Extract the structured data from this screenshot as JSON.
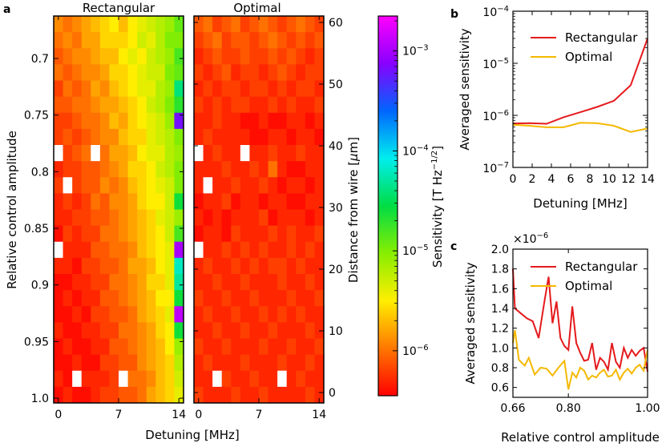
{
  "panel_labels": {
    "a": "a",
    "b": "b",
    "c": "c"
  },
  "heatmap_rect": {
    "title": "Rectangular"
  },
  "heatmap_opt": {
    "title": "Optimal"
  },
  "heatmap_common": {
    "xlabel": "Detuning [MHz]",
    "x_ticks": [
      "0",
      "7",
      "14"
    ],
    "ylabel": "Relative control amplitude",
    "y_ticks": [
      "0.7",
      "0.75",
      "0.8",
      "0.85",
      "0.9",
      "0.95",
      "1.0"
    ],
    "y2label": "Distance from wire [μm]",
    "y2_ticks": [
      "0",
      "10",
      "20",
      "30",
      "40",
      "50",
      "60"
    ]
  },
  "colorbar": {
    "label": "Sensitivity [T Hz^-1/2]",
    "ticks": [
      {
        "label": "10^-3",
        "value": 0.001
      },
      {
        "label": "10^-4",
        "value": 0.0001
      },
      {
        "label": "10^-5",
        "value": 1e-05
      },
      {
        "label": "10^-6",
        "value": 1e-06
      }
    ],
    "log_range": [
      -6.45,
      -2.65
    ],
    "stops": [
      "#ff0000",
      "#ff7700",
      "#ffee00",
      "#88ee00",
      "#00dd44",
      "#00eeee",
      "#0066ff",
      "#8800ff",
      "#ff00ff"
    ]
  },
  "chart_data": [
    {
      "type": "heatmap",
      "title": "Rectangular",
      "xlabel": "Detuning [MHz]",
      "ylabel": "Relative control amplitude",
      "columns": 14,
      "rows": 24,
      "scale": "log10 sensitivity [T Hz^-1/2]",
      "rows_log10": [
        [
          -5.9,
          -6.0,
          -5.9,
          -5.8,
          -5.7,
          -5.6,
          -5.5,
          -5.7,
          -5.5,
          -5.4,
          -5.3,
          -5.2,
          -5.1,
          -4.9
        ],
        [
          -6.0,
          -5.9,
          -6.0,
          -5.8,
          -5.8,
          -5.6,
          -5.6,
          -5.6,
          -5.5,
          -5.3,
          -5.4,
          -5.2,
          -5.0,
          -5.0
        ],
        [
          -6.1,
          -6.0,
          -5.9,
          -5.9,
          -5.8,
          -5.7,
          -5.7,
          -5.5,
          -5.4,
          -5.5,
          -5.3,
          -5.2,
          -5.1,
          -4.8
        ],
        [
          -6.0,
          -6.1,
          -6.0,
          -5.9,
          -5.9,
          -5.8,
          -5.6,
          -5.6,
          -5.5,
          -5.4,
          -5.3,
          -5.3,
          -5.0,
          -4.9
        ],
        [
          -6.2,
          -6.0,
          -6.1,
          -6.0,
          -5.8,
          -5.9,
          -5.7,
          -5.6,
          -5.5,
          -5.4,
          -5.4,
          -5.2,
          -5.1,
          -4.4
        ],
        [
          -6.1,
          -6.1,
          -6.0,
          -6.0,
          -5.9,
          -5.8,
          -5.8,
          -5.7,
          -5.6,
          -5.5,
          -5.3,
          -5.2,
          -5.0,
          -4.7
        ],
        [
          -6.2,
          -6.2,
          -6.1,
          -6.0,
          -6.0,
          -5.9,
          -5.7,
          -5.8,
          -5.6,
          -5.5,
          -5.4,
          -5.3,
          -5.1,
          -3.2
        ],
        [
          -6.2,
          -6.1,
          -6.2,
          -6.1,
          -6.0,
          -5.9,
          -5.9,
          -5.7,
          -5.6,
          -5.6,
          -5.4,
          -5.3,
          -5.2,
          -5.0
        ],
        [
          null,
          -6.2,
          -6.1,
          -6.0,
          null,
          -6.0,
          -5.8,
          -5.8,
          -5.7,
          -5.5,
          -5.4,
          -5.4,
          -5.2,
          -5.1
        ],
        [
          -6.3,
          -6.2,
          -6.2,
          -6.1,
          -6.1,
          -6.0,
          -5.9,
          -5.8,
          -5.6,
          -5.6,
          -5.5,
          -5.3,
          -5.2,
          -5.0
        ],
        [
          -6.2,
          null,
          -6.2,
          -6.1,
          -6.1,
          -5.9,
          -6.0,
          -5.9,
          -5.7,
          -5.6,
          -5.5,
          -5.4,
          -5.3,
          -5.0
        ],
        [
          -6.3,
          -6.2,
          -6.3,
          -6.2,
          -6.0,
          -6.1,
          -5.9,
          -5.9,
          -5.8,
          -5.6,
          -5.5,
          -5.5,
          -5.3,
          -4.6
        ],
        [
          -6.3,
          -6.3,
          -6.2,
          -6.2,
          -6.1,
          -6.1,
          -6.0,
          -5.9,
          -5.8,
          -5.7,
          -5.6,
          -5.4,
          -5.3,
          -5.1
        ],
        [
          -6.4,
          -6.2,
          -6.3,
          -6.2,
          -6.2,
          -6.0,
          -6.0,
          -5.9,
          -5.8,
          -5.7,
          -5.6,
          -5.5,
          -5.3,
          -4.8
        ],
        [
          null,
          -6.3,
          -6.3,
          -6.3,
          -6.1,
          -6.1,
          -6.0,
          -6.0,
          -5.9,
          -5.7,
          -5.6,
          -5.5,
          -5.4,
          -3.0
        ],
        [
          -6.3,
          -6.3,
          -6.4,
          -6.2,
          -6.2,
          -6.1,
          -6.1,
          -6.0,
          -5.8,
          -5.8,
          -5.7,
          -5.5,
          -5.4,
          -4.2
        ],
        [
          -6.4,
          -6.4,
          -6.3,
          -6.3,
          -6.2,
          -6.2,
          -6.0,
          -6.0,
          -5.9,
          -5.8,
          -5.6,
          -5.6,
          -5.4,
          -4.3
        ],
        [
          -6.4,
          -6.3,
          -6.4,
          -6.3,
          -6.3,
          -6.1,
          -6.1,
          -6.0,
          -5.9,
          -5.8,
          -5.7,
          -5.5,
          -5.5,
          -4.6
        ],
        [
          -6.4,
          -6.4,
          -6.3,
          -6.4,
          -6.2,
          -6.2,
          -6.1,
          -6.1,
          -6.0,
          -5.8,
          -5.7,
          -5.6,
          -5.4,
          -2.9
        ],
        [
          -6.3,
          -6.4,
          -6.4,
          -6.3,
          -6.3,
          -6.2,
          -6.2,
          -6.0,
          -6.0,
          -5.9,
          -5.8,
          -5.6,
          -5.5,
          -4.6
        ],
        [
          -6.4,
          -6.3,
          -6.4,
          -6.4,
          -6.3,
          -6.3,
          -6.1,
          -6.1,
          -6.0,
          -5.9,
          -5.8,
          -5.7,
          -5.5,
          -5.1
        ],
        [
          -6.4,
          -6.4,
          -6.3,
          -6.4,
          -6.4,
          -6.2,
          -6.2,
          -6.1,
          -6.1,
          -5.9,
          -5.8,
          -5.7,
          -5.6,
          -5.2
        ],
        [
          -6.3,
          -6.4,
          null,
          -6.3,
          -6.3,
          -6.3,
          -6.2,
          null,
          -6.0,
          -6.0,
          -5.9,
          -5.7,
          -5.6,
          -5.3
        ],
        [
          -6.4,
          -6.3,
          -6.4,
          -6.4,
          -6.3,
          -6.2,
          -6.2,
          -6.1,
          -6.1,
          -6.0,
          -5.8,
          -5.7,
          -5.6,
          -5.4
        ]
      ]
    },
    {
      "type": "heatmap",
      "title": "Optimal",
      "xlabel": "Detuning [MHz]",
      "y2label": "Distance from wire [μm]",
      "columns": 14,
      "rows": 24,
      "scale": "log10 sensitivity [T Hz^-1/2]",
      "rows_log10": [
        [
          -6.1,
          -6.0,
          -6.2,
          -6.1,
          -6.0,
          -6.2,
          -6.1,
          -6.0,
          -6.1,
          -6.2,
          -6.1,
          -6.0,
          -6.1,
          -6.2
        ],
        [
          -6.2,
          -6.1,
          -6.0,
          -6.2,
          -6.1,
          -6.1,
          -6.2,
          -6.1,
          -6.0,
          -6.1,
          -6.2,
          -6.1,
          -6.2,
          -6.1
        ],
        [
          -6.3,
          -6.2,
          -6.1,
          -6.2,
          -6.2,
          -6.1,
          -6.2,
          -6.2,
          -6.1,
          -6.2,
          -6.1,
          -6.2,
          -6.3,
          -6.2
        ],
        [
          -6.2,
          -6.3,
          -6.2,
          -6.1,
          -6.3,
          -6.2,
          -6.2,
          -6.3,
          -6.2,
          -6.1,
          -6.2,
          -6.3,
          -6.2,
          -6.2
        ],
        [
          -6.3,
          -6.2,
          -6.3,
          -6.2,
          -6.2,
          -6.3,
          -6.2,
          -6.2,
          -6.3,
          -6.2,
          -6.3,
          -6.2,
          -6.2,
          -6.3
        ],
        [
          -6.2,
          -6.3,
          -6.2,
          -6.3,
          -6.2,
          -6.2,
          -6.3,
          -6.3,
          -6.2,
          -6.3,
          -6.2,
          -6.3,
          -6.3,
          -6.2
        ],
        [
          -6.3,
          -6.3,
          -6.2,
          -6.3,
          -6.3,
          -6.4,
          -6.4,
          -6.3,
          -6.4,
          -6.4,
          -6.3,
          -6.3,
          -6.4,
          -6.3
        ],
        [
          -6.3,
          -6.2,
          -6.3,
          -6.3,
          -6.3,
          -6.3,
          -6.4,
          -6.4,
          -6.3,
          -6.3,
          -6.4,
          -6.3,
          -6.3,
          -6.4
        ],
        [
          null,
          -6.3,
          -6.2,
          -6.3,
          -6.3,
          null,
          -6.3,
          -6.3,
          -6.2,
          -6.3,
          -6.3,
          -6.2,
          -6.3,
          -6.3
        ],
        [
          -6.3,
          -6.3,
          -6.3,
          -6.2,
          -6.3,
          -6.3,
          -6.2,
          -6.3,
          -6.0,
          -6.3,
          -6.4,
          -6.4,
          -6.3,
          -6.3
        ],
        [
          -6.3,
          null,
          -6.3,
          -6.3,
          -6.2,
          -6.3,
          -6.3,
          -6.2,
          -6.3,
          -6.4,
          -6.3,
          -6.3,
          -6.4,
          -6.3
        ],
        [
          -6.4,
          -6.3,
          -6.3,
          -6.2,
          -6.4,
          -6.3,
          -6.3,
          -6.4,
          -6.3,
          -6.3,
          -6.4,
          -6.4,
          -6.3,
          -6.3
        ],
        [
          -6.3,
          -6.4,
          -6.3,
          -6.4,
          -6.3,
          -6.3,
          -6.3,
          -6.2,
          -6.4,
          -6.3,
          -6.3,
          -6.3,
          -6.4,
          -6.3
        ],
        [
          -6.4,
          -6.3,
          -6.3,
          -6.4,
          -6.2,
          -6.3,
          -6.3,
          -6.3,
          -6.2,
          -6.3,
          -6.2,
          -6.3,
          -6.3,
          -6.2
        ],
        [
          null,
          -6.3,
          -6.3,
          -6.2,
          -6.3,
          -6.2,
          -6.3,
          -6.2,
          -6.3,
          -6.3,
          -6.2,
          -6.3,
          -6.2,
          -6.3
        ],
        [
          -6.3,
          -6.2,
          -6.3,
          -6.3,
          -6.2,
          -6.3,
          -6.2,
          -6.3,
          -6.2,
          -6.2,
          -6.3,
          -6.2,
          -6.3,
          -6.3
        ],
        [
          -6.3,
          -6.3,
          -6.2,
          -6.3,
          -6.3,
          -6.2,
          -6.3,
          -6.3,
          -6.3,
          -6.2,
          -6.3,
          -6.3,
          -6.2,
          -6.3
        ],
        [
          -6.2,
          -6.3,
          -6.3,
          -6.2,
          -6.3,
          -6.3,
          -6.2,
          -6.3,
          -6.3,
          -6.3,
          -6.2,
          -6.3,
          -6.3,
          -6.2
        ],
        [
          -6.3,
          -6.2,
          -6.3,
          -6.3,
          -6.2,
          -6.3,
          -6.3,
          -6.2,
          -6.3,
          -6.2,
          -6.3,
          -6.2,
          -6.3,
          -6.3
        ],
        [
          -6.3,
          -6.3,
          -6.2,
          -6.3,
          -6.3,
          -6.2,
          -6.3,
          -6.3,
          -6.2,
          -6.3,
          -6.3,
          -6.3,
          -6.2,
          -6.3
        ],
        [
          -6.2,
          -6.3,
          -6.3,
          -6.2,
          -6.3,
          -6.3,
          -6.3,
          -6.2,
          -6.3,
          -6.3,
          -6.2,
          -6.3,
          -6.3,
          -6.2
        ],
        [
          -6.3,
          -6.2,
          -6.3,
          -6.3,
          -6.3,
          -6.2,
          -6.3,
          -6.3,
          -6.3,
          -6.2,
          -6.3,
          -6.3,
          -6.2,
          -6.3
        ],
        [
          -6.3,
          -6.3,
          null,
          -6.2,
          -6.3,
          -6.3,
          -6.2,
          -6.3,
          -6.3,
          null,
          -6.3,
          -6.2,
          -6.3,
          -6.3
        ],
        [
          -6.2,
          -6.3,
          -6.3,
          -6.3,
          -6.2,
          -6.3,
          -6.3,
          -6.2,
          -6.3,
          -6.3,
          -6.3,
          -6.3,
          -6.2,
          -6.3
        ]
      ]
    },
    {
      "type": "line",
      "title": "",
      "xlabel": "Detuning [MHz]",
      "ylabel": "Averaged sensitivity",
      "yscale": "log",
      "xlim": [
        0,
        14
      ],
      "ylim": [
        1e-07,
        0.0001
      ],
      "x_ticks": [
        "0",
        "2",
        "4",
        "6",
        "8",
        "10",
        "12",
        "14"
      ],
      "y_ticks": [
        {
          "label": "10^-7",
          "value": 1e-07
        },
        {
          "label": "10^-6",
          "value": 1e-06
        },
        {
          "label": "10^-5",
          "value": 1e-05
        },
        {
          "label": "10^-4",
          "value": 0.0001
        }
      ],
      "legend": "top-right",
      "series": [
        {
          "name": "Rectangular",
          "color": "#e41a1c",
          "x": [
            0,
            1.75,
            3.5,
            5.25,
            7,
            8.75,
            10.5,
            12.25,
            14
          ],
          "values": [
            7e-07,
            7.1e-07,
            6.9e-07,
            9.2e-07,
            1.15e-06,
            1.45e-06,
            1.9e-06,
            3.8e-06,
            3e-05
          ]
        },
        {
          "name": "Optimal",
          "color": "#f5b800",
          "x": [
            0,
            1.75,
            3.5,
            5.25,
            7,
            8.75,
            10.5,
            12.25,
            14
          ],
          "values": [
            6.6e-07,
            6.3e-07,
            5.9e-07,
            5.9e-07,
            7.2e-07,
            7.1e-07,
            6.3e-07,
            4.8e-07,
            5.6e-07
          ]
        }
      ]
    },
    {
      "type": "line",
      "title": "",
      "xlabel": "Relative control amplitude",
      "ylabel": "Averaged sensitivity",
      "y_multiplier": "×10^-6",
      "xlim": [
        0.66,
        1.0
      ],
      "ylim": [
        0.5,
        2.0
      ],
      "x_ticks": [
        "0.66",
        "0.80",
        "1.00"
      ],
      "x_tick_values": [
        0.66,
        0.8,
        1.0
      ],
      "y_ticks": [
        "0.6",
        "0.8",
        "1.0",
        "1.2",
        "1.4",
        "1.6",
        "1.8",
        "2.0"
      ],
      "legend": "top-right",
      "series": [
        {
          "name": "Rectangular",
          "color": "#e41a1c",
          "x": [
            0.66,
            0.665,
            0.68,
            0.695,
            0.71,
            0.725,
            0.74,
            0.75,
            0.76,
            0.77,
            0.78,
            0.79,
            0.8,
            0.81,
            0.82,
            0.83,
            0.84,
            0.85,
            0.86,
            0.87,
            0.88,
            0.89,
            0.9,
            0.91,
            0.92,
            0.93,
            0.94,
            0.95,
            0.96,
            0.97,
            0.98,
            0.99,
            1.0
          ],
          "values": [
            1.8,
            1.4,
            1.35,
            1.3,
            1.27,
            1.1,
            1.48,
            1.72,
            1.25,
            1.47,
            1.1,
            1.02,
            0.98,
            1.42,
            1.05,
            0.95,
            0.87,
            0.88,
            1.05,
            0.78,
            0.9,
            0.86,
            0.78,
            1.05,
            0.86,
            0.8,
            1.0,
            0.9,
            0.98,
            0.92,
            0.97,
            1.0,
            0.76
          ]
        },
        {
          "name": "Optimal",
          "color": "#f5b800",
          "x": [
            0.66,
            0.665,
            0.675,
            0.69,
            0.7,
            0.715,
            0.73,
            0.745,
            0.76,
            0.775,
            0.79,
            0.8,
            0.81,
            0.82,
            0.83,
            0.84,
            0.85,
            0.86,
            0.87,
            0.88,
            0.89,
            0.9,
            0.91,
            0.92,
            0.93,
            0.94,
            0.95,
            0.96,
            0.97,
            0.98,
            0.99,
            1.0
          ],
          "values": [
            1.05,
            1.18,
            0.88,
            0.82,
            0.9,
            0.73,
            0.8,
            0.79,
            0.72,
            0.8,
            0.87,
            0.58,
            0.75,
            0.7,
            0.8,
            0.77,
            0.68,
            0.72,
            0.7,
            0.75,
            0.78,
            0.71,
            0.72,
            0.78,
            0.68,
            0.75,
            0.79,
            0.74,
            0.8,
            0.83,
            0.77,
            0.98
          ]
        }
      ]
    }
  ]
}
